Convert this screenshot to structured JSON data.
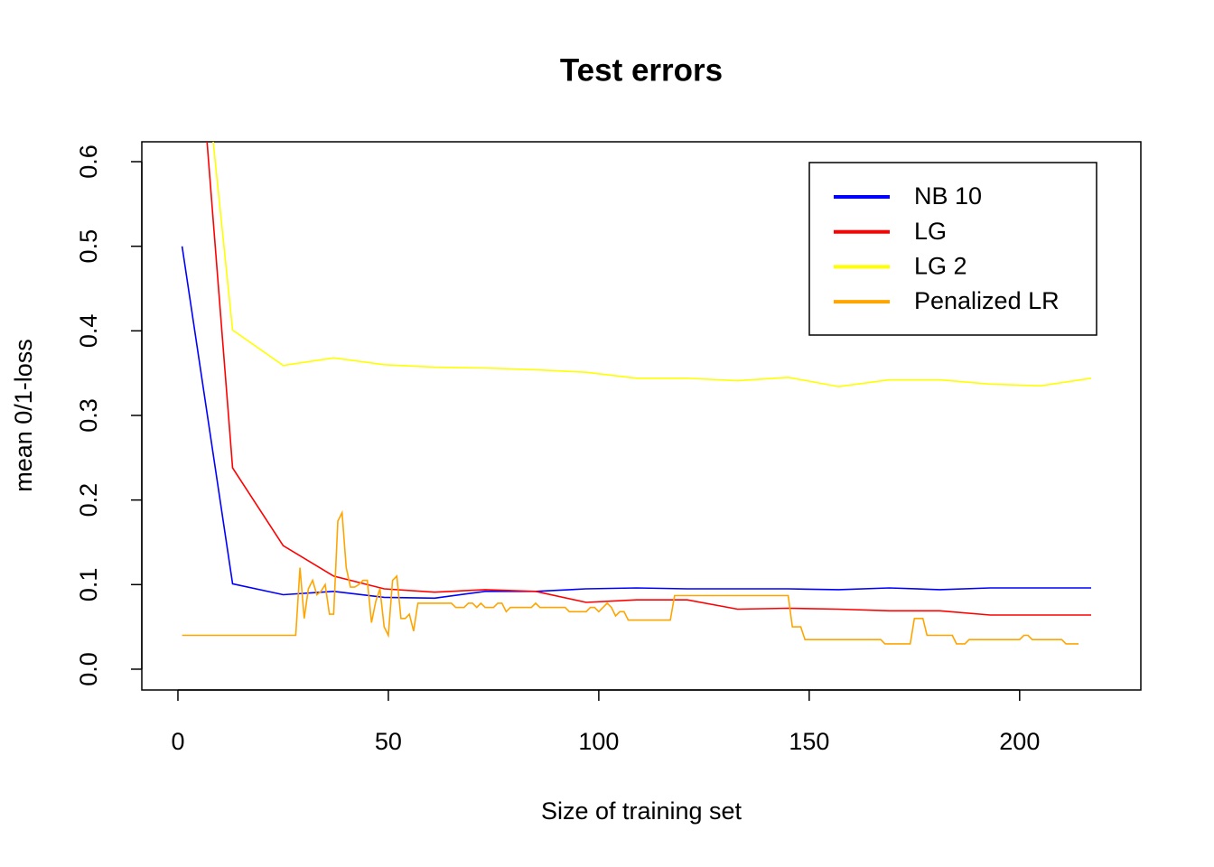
{
  "chart_data": {
    "type": "line",
    "title": "Test errors",
    "x_label": "Size of training set",
    "y_label": "mean 0/1-loss",
    "xlim": [
      -8.58,
      228.8
    ],
    "ylim": [
      -0.0246,
      0.6235
    ],
    "xticks": [
      0,
      50,
      100,
      150,
      200
    ],
    "yticks": [
      {
        "value": 0,
        "label": "0.0"
      },
      0.1,
      0.2,
      0.3,
      0.4,
      0.5,
      0.6
    ],
    "legend": "top-right",
    "series": [
      {
        "name": "NB 10",
        "color": "#0000ff",
        "x": [
          1,
          13,
          25,
          37,
          49,
          61,
          73,
          85,
          97,
          109,
          121,
          133,
          145,
          157,
          169,
          181,
          193,
          205,
          217
        ],
        "values": [
          0.5,
          0.101,
          0.088,
          0.092,
          0.085,
          0.084,
          0.092,
          0.092,
          0.095,
          0.096,
          0.095,
          0.095,
          0.095,
          0.094,
          0.096,
          0.094,
          0.096,
          0.096,
          0.096
        ]
      },
      {
        "name": "LG",
        "color": "#ff0000",
        "x": [
          1,
          13,
          25,
          37,
          49,
          61,
          73,
          85,
          97,
          109,
          121,
          133,
          145,
          157,
          169,
          181,
          193,
          205,
          217
        ],
        "values": [
          1.0,
          0.238,
          0.146,
          0.11,
          0.095,
          0.091,
          0.094,
          0.092,
          0.079,
          0.082,
          0.082,
          0.071,
          0.072,
          0.071,
          0.069,
          0.069,
          0.064,
          0.064,
          0.064
        ]
      },
      {
        "name": "LG 2",
        "color": "#ffff00",
        "x": [
          1,
          13,
          25,
          37,
          49,
          61,
          73,
          85,
          97,
          109,
          121,
          133,
          145,
          157,
          169,
          181,
          193,
          205,
          217
        ],
        "values": [
          0.98,
          0.401,
          0.359,
          0.368,
          0.36,
          0.357,
          0.356,
          0.354,
          0.351,
          0.344,
          0.344,
          0.341,
          0.345,
          0.334,
          0.342,
          0.342,
          0.337,
          0.335,
          0.344
        ]
      },
      {
        "name": "Penalized LR",
        "color": "#ffa500",
        "x": [
          1,
          28,
          29,
          30,
          31,
          32,
          33,
          34,
          35,
          36,
          37,
          38,
          39,
          40,
          41,
          42,
          43,
          44,
          45,
          46,
          47,
          48,
          49,
          50,
          51,
          52,
          53,
          54,
          55,
          56,
          57,
          65,
          66,
          68,
          69,
          70,
          71,
          72,
          73,
          75,
          76,
          77,
          78,
          79,
          84,
          85,
          86,
          92,
          93,
          97,
          98,
          99,
          100,
          101,
          102,
          103,
          104,
          105,
          106,
          107,
          117,
          118,
          145,
          146,
          148,
          149,
          167,
          168,
          174,
          175,
          177,
          178,
          184,
          185,
          187,
          188,
          200,
          201,
          202,
          203,
          210,
          211,
          214
        ],
        "values": [
          0.04,
          0.04,
          0.12,
          0.06,
          0.095,
          0.105,
          0.088,
          0.092,
          0.1,
          0.065,
          0.065,
          0.175,
          0.185,
          0.12,
          0.097,
          0.097,
          0.1,
          0.105,
          0.105,
          0.055,
          0.08,
          0.095,
          0.05,
          0.04,
          0.105,
          0.11,
          0.06,
          0.06,
          0.065,
          0.045,
          0.078,
          0.078,
          0.073,
          0.073,
          0.078,
          0.078,
          0.073,
          0.078,
          0.073,
          0.073,
          0.078,
          0.078,
          0.068,
          0.073,
          0.073,
          0.078,
          0.073,
          0.073,
          0.068,
          0.068,
          0.073,
          0.073,
          0.068,
          0.073,
          0.078,
          0.073,
          0.063,
          0.068,
          0.068,
          0.058,
          0.058,
          0.087,
          0.087,
          0.05,
          0.05,
          0.035,
          0.035,
          0.03,
          0.03,
          0.06,
          0.06,
          0.04,
          0.04,
          0.03,
          0.03,
          0.035,
          0.035,
          0.04,
          0.04,
          0.035,
          0.035,
          0.03,
          0.03
        ]
      }
    ]
  }
}
